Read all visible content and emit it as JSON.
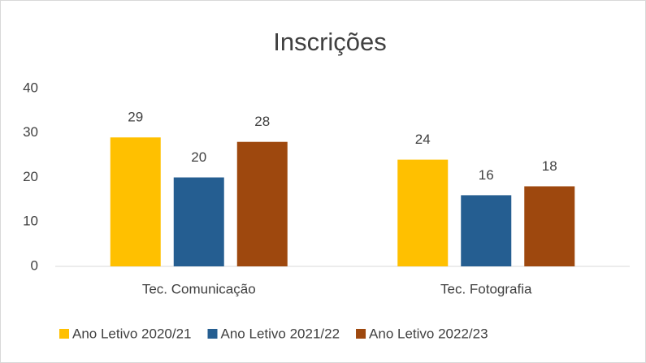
{
  "chart_data": {
    "type": "bar",
    "title": "Inscrições",
    "categories": [
      "Tec. Comunicação",
      "Tec. Fotografia"
    ],
    "series": [
      {
        "name": "Ano Letivo 2020/21",
        "color": "#FFC000",
        "values": [
          29,
          24
        ]
      },
      {
        "name": "Ano Letivo 2021/22",
        "color": "#255E91",
        "values": [
          20,
          16
        ]
      },
      {
        "name": "Ano Letivo 2022/23",
        "color": "#9E480E",
        "values": [
          28,
          18
        ]
      }
    ],
    "ylim": [
      0,
      40
    ],
    "yticks": [
      0,
      10,
      20,
      30,
      40
    ],
    "grid": false,
    "legend": "bottom"
  }
}
